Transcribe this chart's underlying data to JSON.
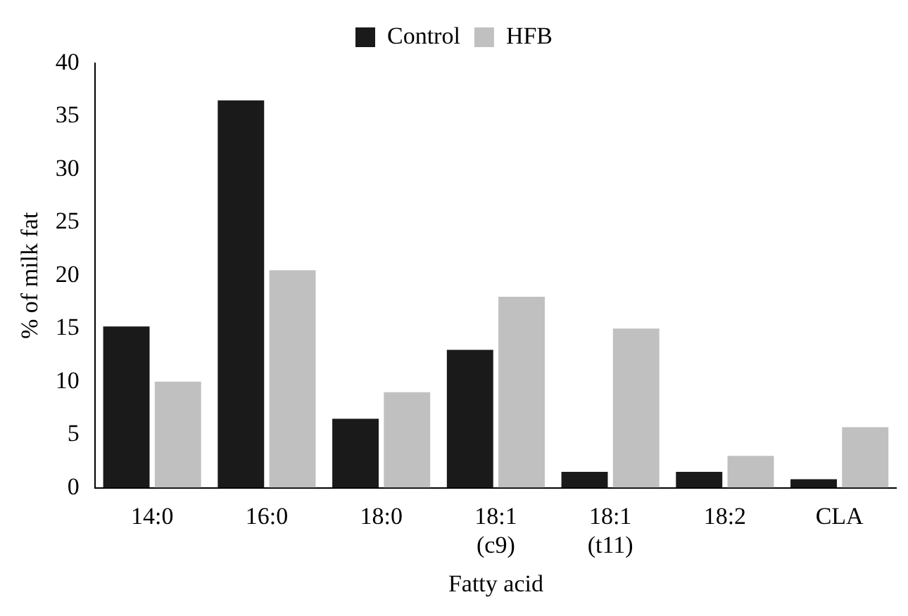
{
  "chart_data": {
    "type": "bar",
    "xlabel": "Fatty acid",
    "ylabel": "% of milk fat",
    "categories": [
      "14:0",
      "16:0",
      "18:0",
      "18:1\n(c9)",
      "18:1\n(t11)",
      "18:2",
      "CLA"
    ],
    "series": [
      {
        "name": "Control",
        "color": "#1a1a1a",
        "values": [
          15.2,
          36.5,
          6.5,
          13,
          1.5,
          1.5,
          0.8
        ]
      },
      {
        "name": "HFB",
        "color": "#c0c0c0",
        "values": [
          10,
          20.5,
          9,
          18,
          15,
          3,
          5.7
        ]
      }
    ],
    "ylim": [
      0,
      40
    ],
    "yticks": [
      0,
      5,
      10,
      15,
      20,
      25,
      30,
      35,
      40
    ],
    "grid": false,
    "legend": "top"
  }
}
